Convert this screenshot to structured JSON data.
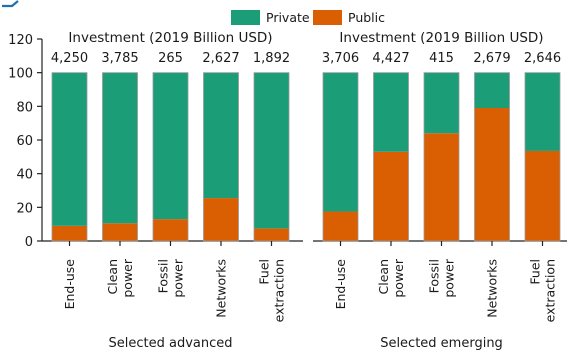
{
  "chart_data": {
    "type": "bar",
    "stacked": true,
    "ylim": [
      0,
      120
    ],
    "yticks": [
      0,
      20,
      40,
      60,
      80,
      100,
      120
    ],
    "legend": {
      "placement": "top-center",
      "entries": [
        {
          "name": "Private",
          "color": "#1b9e77"
        },
        {
          "name": "Public",
          "color": "#d95f02"
        }
      ]
    },
    "categories": [
      "End-use",
      "Clean power",
      "Fossil power",
      "Networks",
      "Fuel extraction"
    ],
    "category_lines": [
      [
        "End-use"
      ],
      [
        "Clean",
        "power"
      ],
      [
        "Fossil",
        "power"
      ],
      [
        "Networks"
      ],
      [
        "Fuel",
        "extraction"
      ]
    ],
    "panels": [
      {
        "group": "Selected advanced",
        "annotation_title": "Investment (2019 Billion USD)",
        "investment": [
          "4,250",
          "3,785",
          "265",
          "2,627",
          "1,892"
        ],
        "series": [
          {
            "name": "Public",
            "values": [
              9,
              10.5,
              13,
              25.5,
              7.5
            ]
          },
          {
            "name": "Private",
            "values": [
              91,
              89.5,
              87,
              74.5,
              92.5
            ]
          }
        ]
      },
      {
        "group": "Selected emerging",
        "annotation_title": "Investment (2019 Billion USD)",
        "investment": [
          "3,706",
          "4,427",
          "415",
          "2,679",
          "2,646"
        ],
        "series": [
          {
            "name": "Public",
            "values": [
              17.5,
              53,
              64,
              79,
              53.5
            ]
          },
          {
            "name": "Private",
            "values": [
              82.5,
              47,
              36,
              21,
              46.5
            ]
          }
        ]
      }
    ]
  }
}
